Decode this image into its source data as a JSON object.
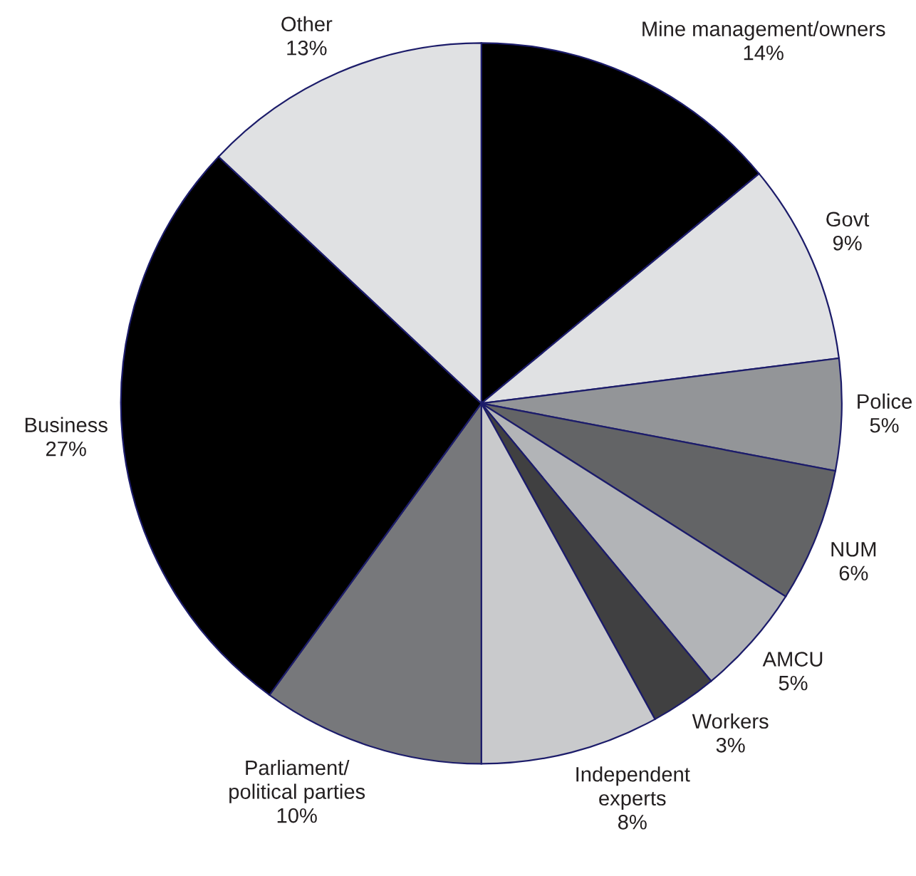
{
  "chart_data": {
    "type": "pie",
    "categories": [
      "Mine management/owners",
      "Govt",
      "Police",
      "NUM",
      "AMCU",
      "Workers",
      "Independent\nexperts",
      "Parliament/\npolitical parties",
      "Business",
      "Other"
    ],
    "values": [
      14,
      9,
      5,
      6,
      5,
      3,
      8,
      10,
      27,
      13
    ],
    "value_labels": [
      "14%",
      "9%",
      "5%",
      "6%",
      "5%",
      "3%",
      "8%",
      "10%",
      "27%",
      "13%"
    ],
    "colors": [
      "#000000",
      "#e0e1e3",
      "#939598",
      "#636466",
      "#b2b4b7",
      "#404041",
      "#c9cacc",
      "#77787b",
      "#000000",
      "#e0e1e3"
    ]
  }
}
